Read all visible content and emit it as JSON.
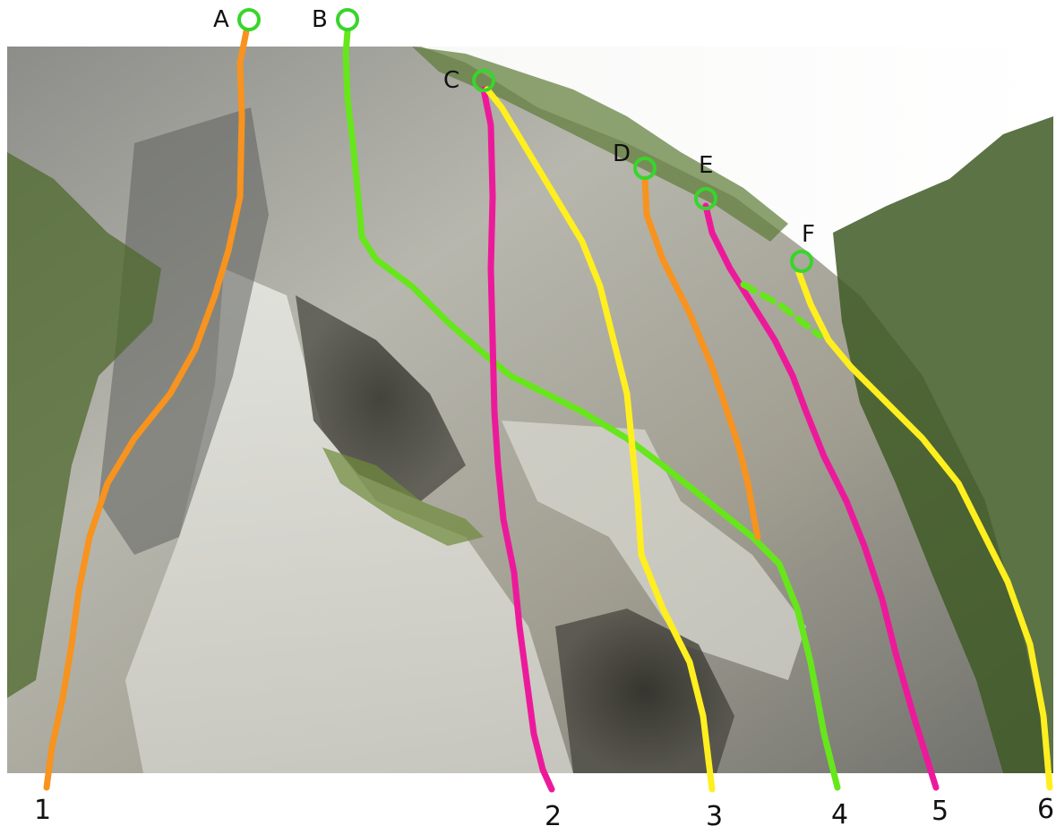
{
  "topo": {
    "colors": {
      "orange": "#f7931e",
      "green": "#66e61b",
      "magenta": "#ec1a9b",
      "yellow": "#ffef1f",
      "anchor": "#38d52b"
    },
    "anchors": [
      {
        "id": "A",
        "label": "A"
      },
      {
        "id": "B",
        "label": "B"
      },
      {
        "id": "C",
        "label": "C"
      },
      {
        "id": "D",
        "label": "D"
      },
      {
        "id": "E",
        "label": "E"
      },
      {
        "id": "F",
        "label": "F"
      }
    ],
    "starts": [
      {
        "id": "1",
        "label": "1"
      },
      {
        "id": "2",
        "label": "2"
      },
      {
        "id": "3",
        "label": "3"
      },
      {
        "id": "4",
        "label": "4"
      },
      {
        "id": "5",
        "label": "5"
      },
      {
        "id": "6",
        "label": "6"
      }
    ],
    "routes": [
      {
        "from": "A",
        "to": "1",
        "color": "orange"
      },
      {
        "from": "B",
        "to": "4",
        "color": "green"
      },
      {
        "from": "C",
        "to": "2",
        "color": "magenta"
      },
      {
        "from": "C",
        "to": "3",
        "color": "yellow"
      },
      {
        "from": "D",
        "to": "4",
        "color": "orange"
      },
      {
        "from": "E",
        "to": "5",
        "color": "magenta"
      },
      {
        "from": "F",
        "to": "6",
        "color": "yellow"
      }
    ]
  }
}
